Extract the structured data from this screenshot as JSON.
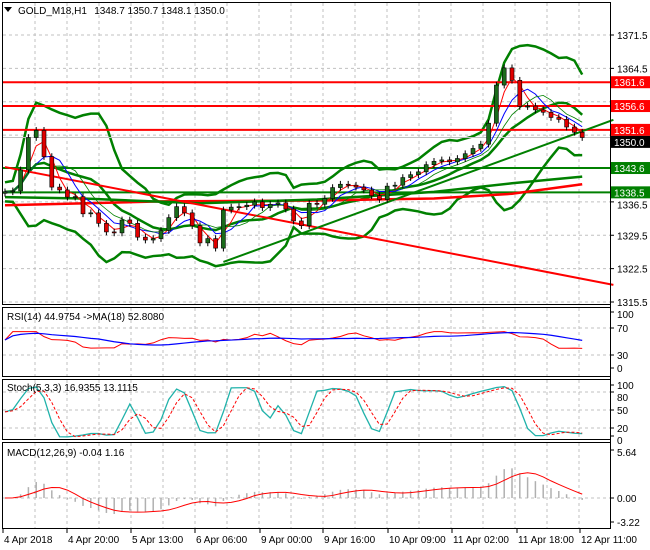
{
  "header": {
    "symbol": "GOLD_M18,H1",
    "ohlc": "1348.7 1350.7 1348.1 1350.0"
  },
  "chart_data": [
    {
      "type": "candlestick",
      "title": "GOLD_M18,H1",
      "x_tick_labels": [
        "4 Apr 2018",
        "4 Apr 20:00",
        "5 Apr 13:00",
        "6 Apr 06:00",
        "9 Apr 00:00",
        "9 Apr 16:00",
        "10 Apr 09:00",
        "11 Apr 02:00",
        "11 Apr 18:00",
        "12 Apr 11:00"
      ],
      "y_tick_labels": [
        "1371.5",
        "1364.5",
        "1336.5",
        "1329.5",
        "1322.5",
        "1315.5"
      ],
      "ylim": [
        1315.5,
        1371.5
      ],
      "grid": true,
      "closes": [
        1338.6,
        1338.8,
        1343.2,
        1350,
        1351.5,
        1346,
        1339.6,
        1339,
        1337.5,
        1337.6,
        1334,
        1334.2,
        1332,
        1330.2,
        1330,
        1332.7,
        1332,
        1329.1,
        1328.5,
        1328.8,
        1330.5,
        1333.2,
        1335.5,
        1334.2,
        1331.5,
        1327.9,
        1328.8,
        1326.8,
        1334.8,
        1335.4,
        1335.5,
        1335.8,
        1336.5,
        1335.3,
        1336,
        1336.3,
        1335,
        1332.5,
        1331.5,
        1336.2,
        1336,
        1337.2,
        1339.5,
        1340.2,
        1340,
        1339.6,
        1339,
        1337.8,
        1337,
        1339.8,
        1340,
        1341.6,
        1342.2,
        1342.8,
        1344.3,
        1345,
        1345.3,
        1344.9,
        1345.6,
        1346.6,
        1347.7,
        1348.6,
        1353,
        1361,
        1364.6,
        1362,
        1356.5,
        1356.6,
        1355.8,
        1355.3,
        1354.2,
        1353.8,
        1352.2,
        1351.1,
        1350.0
      ],
      "current_price": {
        "label": "1350.0",
        "value": 1350.0,
        "color": "#000000"
      },
      "levels": [
        {
          "label": "1361.6",
          "value": 1361.6,
          "color": "#ff0000"
        },
        {
          "label": "1356.6",
          "value": 1356.6,
          "color": "#ff0000"
        },
        {
          "label": "1351.6",
          "value": 1351.6,
          "color": "#ff0000"
        },
        {
          "label": "1343.6",
          "value": 1343.6,
          "color": "#008000"
        },
        {
          "label": "1338.5",
          "value": 1338.5,
          "color": "#008000"
        }
      ],
      "trendlines": [
        {
          "color": "#ff0000",
          "points": [
            [
              0,
              1343.8
            ],
            [
              78,
              1319.1
            ]
          ]
        },
        {
          "color": "#008000",
          "points": [
            [
              28,
              1323.9
            ],
            [
              78,
              1353.7
            ]
          ]
        }
      ],
      "slow_mas": [
        {
          "color": "#ff0000",
          "points": [
            [
              0,
              1335.8
            ],
            [
              20,
              1336.6
            ],
            [
              40,
              1336.8
            ],
            [
              55,
              1337.2
            ],
            [
              65,
              1338.2
            ],
            [
              74,
              1340.2
            ]
          ]
        },
        {
          "color": "#008000",
          "points": [
            [
              0,
              1337.5
            ],
            [
              10,
              1337.2
            ],
            [
              25,
              1336.2
            ],
            [
              40,
              1337.0
            ],
            [
              55,
              1338.6
            ],
            [
              65,
              1340.4
            ],
            [
              74,
              1341.8
            ]
          ]
        }
      ],
      "colors": {
        "bull": "#1a6b1a",
        "bear": "#e00000",
        "bands": "#008000",
        "ma_fast": "#ff0000",
        "ma_mid": "#0000ff"
      }
    },
    {
      "type": "line",
      "name": "RSI(14)",
      "header": "RSI(14) 44.9754  ->MA(18) 52.8080",
      "y_tick_labels": [
        "100",
        "70",
        "30",
        "0"
      ],
      "ylim": [
        0,
        100
      ],
      "colors": {
        "rsi": "#ff0000",
        "ma": "#0000ff"
      }
    },
    {
      "type": "line",
      "name": "Stoch(5,3,3)",
      "header": "Stoch(5,3,3) 16.9355 13.1115",
      "y_tick_labels": [
        "100",
        "80",
        "50",
        "20",
        "0"
      ],
      "ylim": [
        0,
        100
      ],
      "colors": {
        "k": "#20b2aa",
        "d": "#ff0000"
      }
    },
    {
      "type": "bar",
      "name": "MACD(12,26,9)",
      "header": "MACD(12,26,9) -0.04 1.16",
      "y_tick_labels": [
        "5.64",
        "0.00",
        "-3.22"
      ],
      "ylim": [
        -3.22,
        5.64
      ],
      "colors": {
        "hist": "#b0b0b0",
        "signal": "#ff0000"
      }
    }
  ]
}
